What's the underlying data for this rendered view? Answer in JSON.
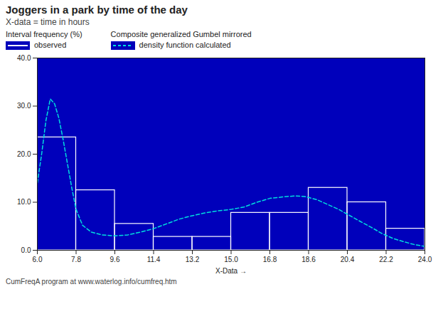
{
  "chart_data": {
    "type": "histogram",
    "title": "Joggers in a park by time of the day",
    "subtitle": "X-data = time in hours",
    "caption": "CumFreqA program at www.waterlog.info/cumfreq.htm",
    "xlabel": "X-Data",
    "bins": [
      6.0,
      7.8,
      9.6,
      11.4,
      13.2,
      15.0,
      16.8,
      18.6,
      20.4,
      22.2,
      24.0
    ],
    "series": [
      {
        "name": "observed",
        "legend_title": "Interval frequency (%)",
        "type": "bar",
        "color": "#FFFFFF",
        "values": [
          23.5,
          12.5,
          5.5,
          2.8,
          2.8,
          7.8,
          7.8,
          13.0,
          10.0,
          4.5
        ]
      },
      {
        "name": "density function calculated",
        "legend_title": "Composite generalized Gumbel mirrored",
        "type": "line",
        "color": "#00DDDD",
        "line_style": "dashed",
        "x": [
          6.0,
          6.2,
          6.4,
          6.6,
          6.8,
          7.0,
          7.2,
          7.4,
          7.6,
          7.8,
          8.1,
          8.5,
          9.0,
          9.6,
          10.2,
          10.8,
          11.4,
          12.0,
          12.6,
          13.2,
          13.8,
          14.4,
          15.0,
          15.6,
          16.2,
          16.8,
          17.2,
          17.6,
          18.0,
          18.4,
          18.6,
          19.0,
          19.5,
          20.0,
          20.4,
          21.0,
          21.5,
          22.0,
          22.5,
          23.0,
          23.5,
          24.0
        ],
        "values": [
          14.0,
          20.0,
          27.0,
          31.5,
          30.5,
          27.5,
          23.0,
          18.0,
          13.0,
          8.5,
          5.2,
          3.8,
          3.2,
          3.0,
          3.2,
          3.8,
          4.5,
          5.5,
          6.5,
          7.2,
          7.8,
          8.2,
          8.5,
          9.0,
          10.0,
          10.8,
          11.0,
          11.2,
          11.3,
          11.2,
          11.0,
          10.5,
          9.5,
          8.5,
          7.5,
          6.0,
          4.8,
          3.5,
          2.5,
          1.8,
          1.2,
          0.8
        ]
      }
    ],
    "xlim": [
      6.0,
      24.0
    ],
    "ylim": [
      0.0,
      40.0
    ],
    "xticks": [
      {
        "value": 6,
        "label": "6.0"
      },
      7.8,
      9.6,
      11.4,
      13.2,
      {
        "value": 15,
        "label": "15.0"
      },
      16.8,
      18.6,
      20.4,
      22.2,
      {
        "value": 24,
        "label": "24.0"
      }
    ],
    "yticks": [
      {
        "value": 0,
        "label": "0.0"
      },
      {
        "value": 10,
        "label": "10.0"
      },
      {
        "value": 20,
        "label": "20.0"
      },
      {
        "value": 30,
        "label": "30.0"
      },
      {
        "value": 40,
        "label": "40.0"
      }
    ],
    "legend": "top"
  }
}
